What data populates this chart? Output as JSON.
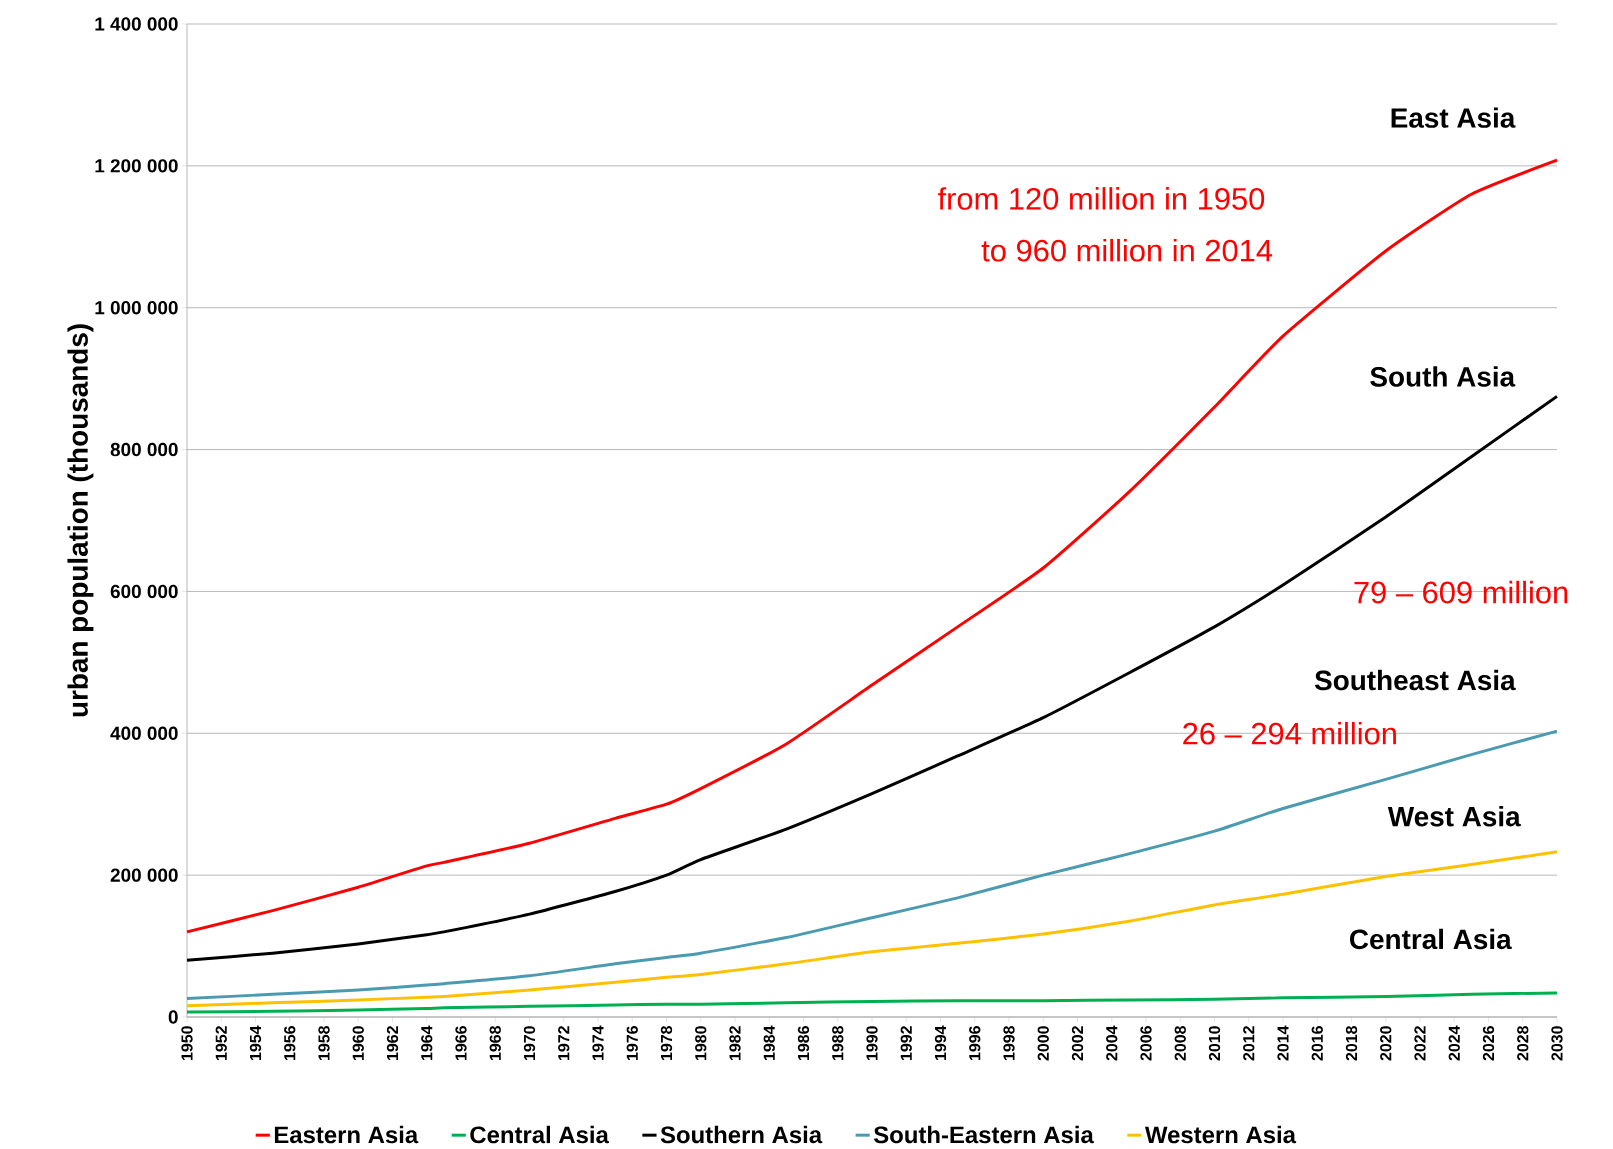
{
  "chart_data": {
    "type": "line",
    "ylabel": "urban population (thousands)",
    "xlim": [
      1950,
      2030
    ],
    "xticks": [
      1950,
      1952,
      1954,
      1956,
      1958,
      1960,
      1962,
      1964,
      1966,
      1968,
      1970,
      1972,
      1974,
      1976,
      1978,
      1980,
      1982,
      1984,
      1986,
      1988,
      1990,
      1992,
      1994,
      1996,
      1998,
      2000,
      2002,
      2004,
      2006,
      2008,
      2010,
      2012,
      2014,
      2016,
      2018,
      2020,
      2022,
      2024,
      2026,
      2028,
      2030
    ],
    "ylim": [
      0,
      1400000
    ],
    "yticks": [
      {
        "value": 0,
        "label": "0"
      },
      {
        "value": 200000,
        "label": "200 000"
      },
      {
        "value": 400000,
        "label": "400 000"
      },
      {
        "value": 600000,
        "label": "600 000"
      },
      {
        "value": 800000,
        "label": "800 000"
      },
      {
        "value": 1000000,
        "label": "1 000 000"
      },
      {
        "value": 1200000,
        "label": "1 200 000"
      },
      {
        "value": 1400000,
        "label": "1 400 000"
      }
    ],
    "x": [
      1950,
      1955,
      1960,
      1964,
      1965,
      1970,
      1975,
      1978,
      1980,
      1985,
      1990,
      1995,
      2000,
      2005,
      2010,
      2014,
      2020,
      2025,
      2030
    ],
    "series": [
      {
        "name": "Eastern Asia",
        "color": "#ff0000",
        "values": [
          120000,
          150000,
          183000,
          213000,
          218000,
          245000,
          280000,
          300000,
          322000,
          385000,
          468000,
          550000,
          633000,
          740000,
          860000,
          960000,
          1080000,
          1160000,
          1208000
        ]
      },
      {
        "name": "Central Asia",
        "color": "#00b050",
        "values": [
          7000,
          8000,
          10000,
          12000,
          13000,
          15000,
          17000,
          18000,
          18000,
          20000,
          22000,
          23000,
          23000,
          24000,
          25000,
          27000,
          29000,
          32000,
          34000
        ]
      },
      {
        "name": "Southern Asia",
        "color": "#000000",
        "values": [
          80000,
          90000,
          103000,
          116000,
          120000,
          145000,
          177000,
          200000,
          222000,
          265000,
          315000,
          368000,
          422000,
          485000,
          550000,
          609000,
          705000,
          790000,
          875000
        ]
      },
      {
        "name": "South-Eastern Asia",
        "color": "#4a9bb0",
        "values": [
          26000,
          32000,
          38000,
          45000,
          47000,
          58000,
          75000,
          84000,
          90000,
          112000,
          140000,
          168000,
          200000,
          230000,
          262000,
          294000,
          335000,
          370000,
          403000
        ]
      },
      {
        "name": "Western Asia",
        "color": "#ffc000",
        "values": [
          16000,
          20000,
          24000,
          28000,
          29000,
          38000,
          49000,
          56000,
          60000,
          75000,
          92000,
          104000,
          117000,
          135000,
          158000,
          173000,
          198000,
          215000,
          233000
        ]
      }
    ],
    "grid": "y",
    "legend": "bottom",
    "marker": "none",
    "line_style": "solid",
    "annotations": [
      "East Asia",
      "South Asia",
      "Southeast Asia",
      "West Asia",
      "Central Asia",
      "from 120 million in 1950",
      "to 960 million in 2014",
      "79 – 609 million",
      "26 – 294 million"
    ]
  }
}
